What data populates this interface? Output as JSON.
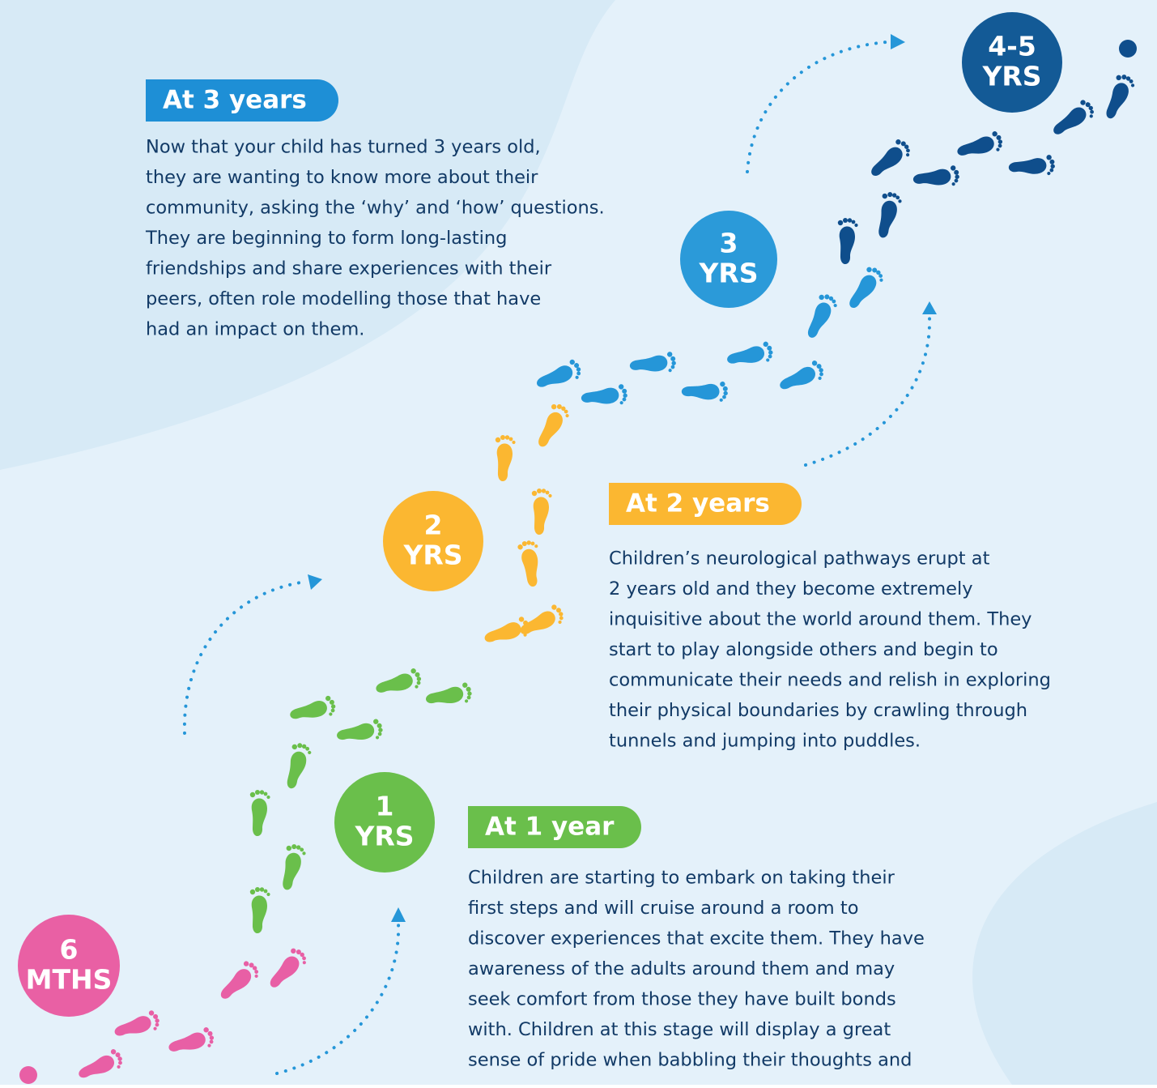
{
  "milestones": [
    {
      "lines": [
        "4-5",
        "YRS"
      ]
    },
    {
      "lines": [
        "3",
        "YRS"
      ]
    },
    {
      "lines": [
        "2",
        "YRS"
      ]
    },
    {
      "lines": [
        "1",
        "YRS"
      ]
    },
    {
      "lines": [
        "6",
        "MTHS"
      ]
    }
  ],
  "sections": [
    {
      "heading": "At 3 years",
      "lines": [
        "Now that your child has turned 3 years old,",
        "they are wanting to know more about their",
        "community, asking the ‘why’ and ‘how’ questions.",
        "They are beginning to form long-lasting",
        "friendships and share experiences with their",
        "peers, often role modelling those that have",
        "had an impact on them."
      ]
    },
    {
      "heading": "At 2 years",
      "lines": [
        "Children’s neurological pathways erupt at",
        "2 years old and they become extremely",
        "inquisitive about the world around them. They",
        "start to play alongside others and begin to",
        "communicate their needs and relish in exploring",
        "their physical boundaries by crawling through",
        "tunnels and jumping into puddles."
      ]
    },
    {
      "heading": "At 1 year",
      "lines": [
        "Children are starting to embark on taking their",
        "first steps and will cruise around a room to",
        "discover experiences that excite them. They have",
        "awareness of the adults around them and may",
        "seek comfort from those they have built bonds",
        "with. Children at this stage will display a great",
        "sense of pride when babbling their thoughts and"
      ]
    }
  ]
}
